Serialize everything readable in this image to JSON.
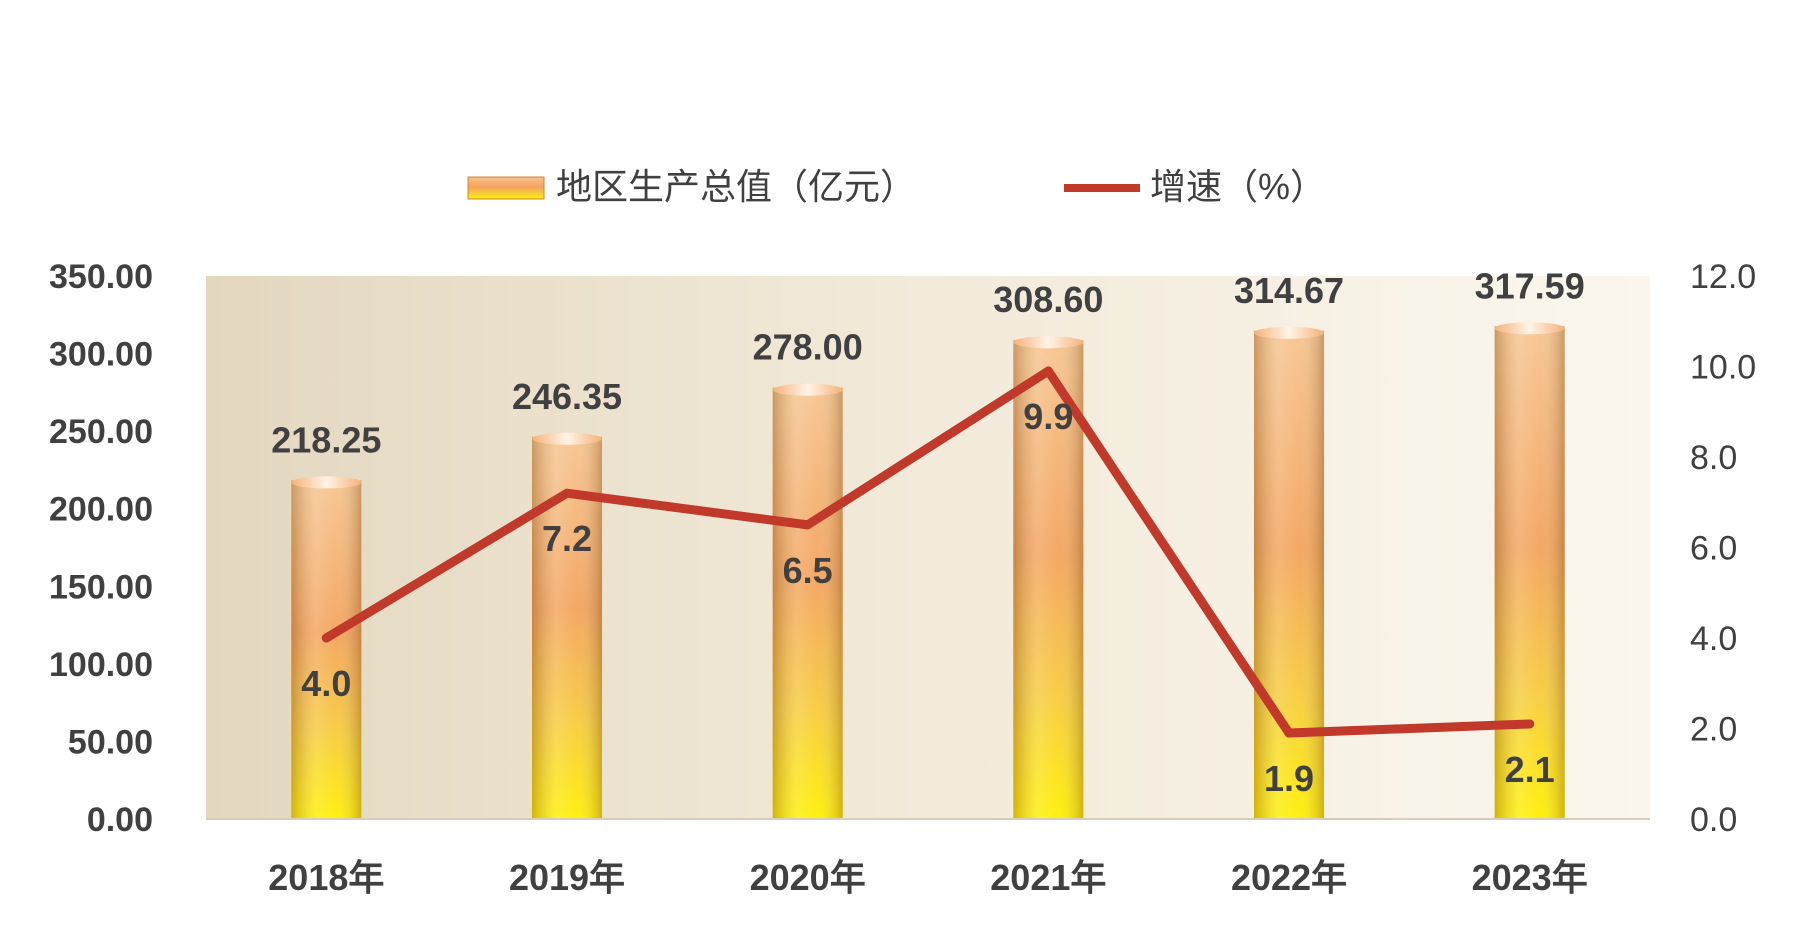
{
  "chart_data": {
    "type": "bar",
    "categories": [
      "2018年",
      "2019年",
      "2020年",
      "2021年",
      "2022年",
      "2023年"
    ],
    "series": [
      {
        "name": "地区生产总值（亿元）",
        "type": "bar",
        "axis": "left",
        "values": [
          218.25,
          246.35,
          278.0,
          308.6,
          314.67,
          317.59
        ],
        "labels": [
          "218.25",
          "246.35",
          "278.00",
          "308.60",
          "314.67",
          "317.59"
        ]
      },
      {
        "name": "增速（%）",
        "type": "line",
        "axis": "right",
        "values": [
          4.0,
          7.2,
          6.5,
          9.9,
          1.9,
          2.1
        ],
        "labels": [
          "4.0",
          "7.2",
          "6.5",
          "9.9",
          "1.9",
          "2.1"
        ]
      }
    ],
    "y_left": {
      "range": [
        0,
        350
      ],
      "ticks": [
        "0.00",
        "50.00",
        "100.00",
        "150.00",
        "200.00",
        "250.00",
        "300.00",
        "350.00"
      ]
    },
    "y_right": {
      "range": [
        0,
        12
      ],
      "ticks": [
        "0.0",
        "2.0",
        "4.0",
        "6.0",
        "8.0",
        "10.0",
        "12.0"
      ]
    },
    "legend_position": "top",
    "grid": false,
    "colors": {
      "bar_top": "#f0a65a",
      "bar_bottom": "#ffee00",
      "line": "#c0392b",
      "text": "#404040"
    }
  }
}
